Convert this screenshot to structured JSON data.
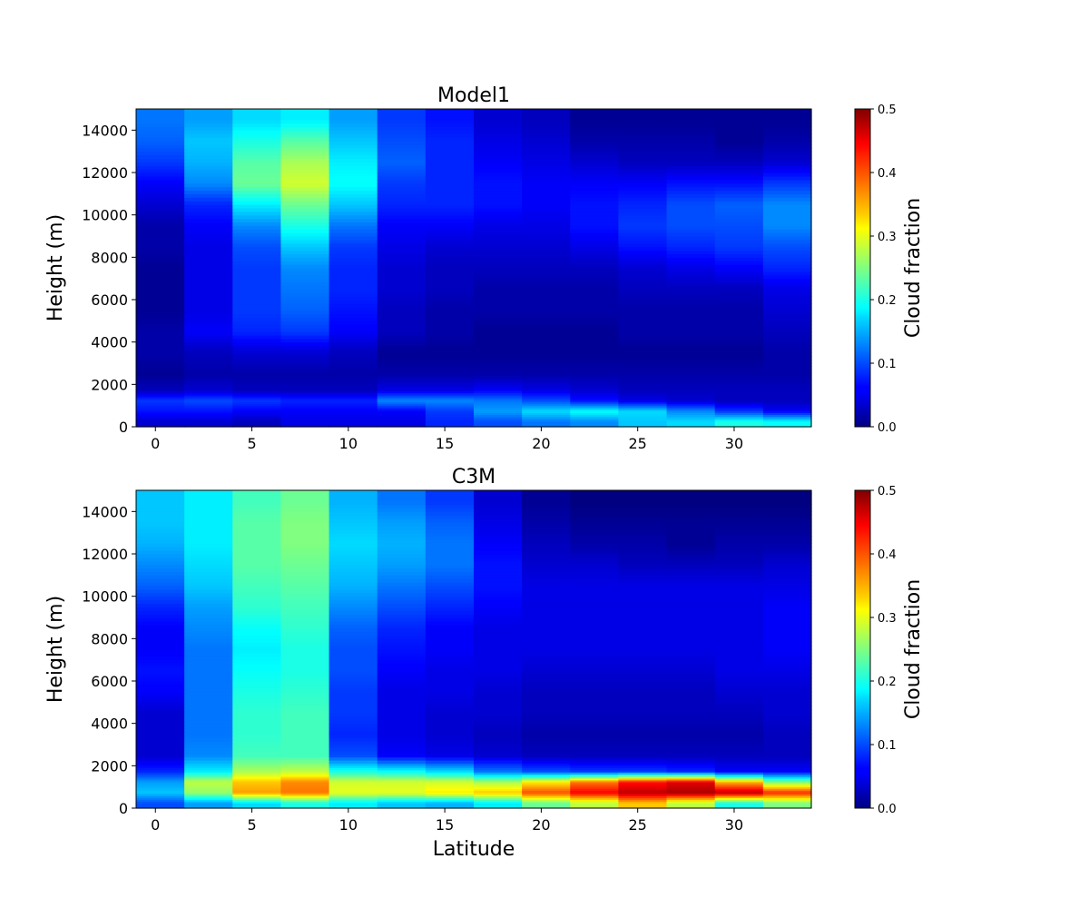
{
  "figure": {
    "description_type": "heatmap",
    "shared_xlabel": "Latitude"
  },
  "chart_data": [
    {
      "type": "heatmap",
      "title": "Model1",
      "xlabel": "",
      "ylabel": "Height (m)",
      "colorbar_label": "Cloud fraction",
      "colormap": "jet",
      "vlim": [
        0,
        0.5
      ],
      "xlim": [
        -1,
        34
      ],
      "ylim": [
        0,
        15000
      ],
      "x_ticks": [
        0,
        5,
        10,
        15,
        20,
        25,
        30
      ],
      "y_ticks": [
        0,
        2000,
        4000,
        6000,
        8000,
        10000,
        12000,
        14000
      ],
      "colorbar_ticks": [
        "0.0",
        "0.1",
        "0.2",
        "0.3",
        "0.4",
        "0.5"
      ],
      "column_centers_lat": [
        0.25,
        2.75,
        5.25,
        7.75,
        10.25,
        12.75,
        15.25,
        17.75,
        20.25,
        22.75,
        25.25,
        27.75,
        30.25,
        32.75
      ],
      "height_levels_m": [
        250,
        750,
        1250,
        1750,
        2500,
        3500,
        4500,
        5500,
        6500,
        7500,
        8500,
        9500,
        10500,
        11500,
        12500,
        13500,
        14500
      ],
      "values": [
        [
          0.04,
          0.04,
          0.03,
          0.05,
          0.05,
          0.05,
          0.08,
          0.1,
          0.12,
          0.13,
          0.16,
          0.17,
          0.2,
          0.19
        ],
        [
          0.07,
          0.07,
          0.06,
          0.06,
          0.06,
          0.06,
          0.09,
          0.14,
          0.17,
          0.19,
          0.17,
          0.13,
          0.09,
          0.06
        ],
        [
          0.09,
          0.1,
          0.09,
          0.08,
          0.08,
          0.13,
          0.13,
          0.12,
          0.1,
          0.07,
          0.05,
          0.04,
          0.03,
          0.03
        ],
        [
          0.03,
          0.04,
          0.03,
          0.03,
          0.03,
          0.05,
          0.05,
          0.06,
          0.05,
          0.04,
          0.03,
          0.03,
          0.03,
          0.03
        ],
        [
          0.01,
          0.02,
          0.02,
          0.02,
          0.02,
          0.02,
          0.02,
          0.02,
          0.02,
          0.02,
          0.02,
          0.02,
          0.02,
          0.02
        ],
        [
          0.02,
          0.03,
          0.04,
          0.04,
          0.03,
          0.01,
          0.01,
          0.01,
          0.01,
          0.01,
          0.01,
          0.01,
          0.01,
          0.02
        ],
        [
          0.02,
          0.06,
          0.08,
          0.09,
          0.06,
          0.03,
          0.02,
          0.01,
          0.01,
          0.01,
          0.02,
          0.02,
          0.02,
          0.03
        ],
        [
          0.01,
          0.05,
          0.09,
          0.11,
          0.07,
          0.03,
          0.02,
          0.02,
          0.02,
          0.02,
          0.02,
          0.02,
          0.02,
          0.04
        ],
        [
          0.01,
          0.05,
          0.09,
          0.12,
          0.08,
          0.04,
          0.03,
          0.02,
          0.02,
          0.02,
          0.03,
          0.03,
          0.03,
          0.05
        ],
        [
          0.01,
          0.05,
          0.09,
          0.13,
          0.08,
          0.04,
          0.03,
          0.03,
          0.03,
          0.03,
          0.04,
          0.05,
          0.06,
          0.08
        ],
        [
          0.02,
          0.05,
          0.1,
          0.16,
          0.09,
          0.05,
          0.04,
          0.04,
          0.04,
          0.05,
          0.07,
          0.08,
          0.09,
          0.1
        ],
        [
          0.02,
          0.06,
          0.13,
          0.2,
          0.12,
          0.06,
          0.06,
          0.05,
          0.05,
          0.07,
          0.09,
          0.1,
          0.1,
          0.13
        ],
        [
          0.04,
          0.08,
          0.18,
          0.24,
          0.16,
          0.08,
          0.08,
          0.07,
          0.06,
          0.07,
          0.08,
          0.1,
          0.11,
          0.13
        ],
        [
          0.06,
          0.13,
          0.24,
          0.29,
          0.19,
          0.09,
          0.08,
          0.07,
          0.06,
          0.06,
          0.06,
          0.07,
          0.07,
          0.09
        ],
        [
          0.09,
          0.15,
          0.23,
          0.27,
          0.18,
          0.11,
          0.08,
          0.06,
          0.05,
          0.04,
          0.03,
          0.03,
          0.03,
          0.04
        ],
        [
          0.11,
          0.16,
          0.2,
          0.23,
          0.16,
          0.1,
          0.08,
          0.05,
          0.04,
          0.02,
          0.02,
          0.02,
          0.01,
          0.02
        ],
        [
          0.12,
          0.14,
          0.17,
          0.18,
          0.14,
          0.09,
          0.07,
          0.04,
          0.03,
          0.01,
          0.01,
          0.01,
          0.01,
          0.01
        ]
      ]
    },
    {
      "type": "heatmap",
      "title": "C3M",
      "xlabel": "Latitude",
      "ylabel": "Height (m)",
      "colorbar_label": "Cloud fraction",
      "colormap": "jet",
      "vlim": [
        0,
        0.5
      ],
      "xlim": [
        -1,
        34
      ],
      "ylim": [
        0,
        15000
      ],
      "x_ticks": [
        0,
        5,
        10,
        15,
        20,
        25,
        30
      ],
      "y_ticks": [
        0,
        2000,
        4000,
        6000,
        8000,
        10000,
        12000,
        14000
      ],
      "colorbar_ticks": [
        "0.0",
        "0.1",
        "0.2",
        "0.3",
        "0.4",
        "0.5"
      ],
      "column_centers_lat": [
        0.25,
        2.75,
        5.25,
        7.75,
        10.25,
        12.75,
        15.25,
        17.75,
        20.25,
        22.75,
        25.25,
        27.75,
        30.25,
        32.75
      ],
      "height_levels_m": [
        250,
        750,
        1250,
        1750,
        2500,
        3500,
        4500,
        5500,
        6500,
        7500,
        8500,
        9500,
        10500,
        11500,
        12500,
        13500,
        14500
      ],
      "values": [
        [
          0.1,
          0.14,
          0.17,
          0.2,
          0.18,
          0.16,
          0.15,
          0.18,
          0.24,
          0.28,
          0.34,
          0.28,
          0.2,
          0.25
        ],
        [
          0.16,
          0.26,
          0.36,
          0.38,
          0.3,
          0.3,
          0.32,
          0.34,
          0.4,
          0.44,
          0.47,
          0.48,
          0.47,
          0.42
        ],
        [
          0.14,
          0.28,
          0.34,
          0.37,
          0.29,
          0.29,
          0.29,
          0.27,
          0.32,
          0.38,
          0.43,
          0.45,
          0.35,
          0.25
        ],
        [
          0.08,
          0.18,
          0.27,
          0.28,
          0.2,
          0.19,
          0.17,
          0.12,
          0.1,
          0.09,
          0.09,
          0.08,
          0.06,
          0.06
        ],
        [
          0.04,
          0.13,
          0.22,
          0.22,
          0.1,
          0.06,
          0.05,
          0.04,
          0.03,
          0.03,
          0.03,
          0.03,
          0.03,
          0.03
        ],
        [
          0.04,
          0.12,
          0.21,
          0.22,
          0.08,
          0.05,
          0.04,
          0.03,
          0.02,
          0.02,
          0.02,
          0.02,
          0.02,
          0.03
        ],
        [
          0.04,
          0.12,
          0.21,
          0.22,
          0.09,
          0.05,
          0.04,
          0.04,
          0.03,
          0.03,
          0.03,
          0.03,
          0.03,
          0.04
        ],
        [
          0.06,
          0.12,
          0.2,
          0.21,
          0.09,
          0.05,
          0.05,
          0.04,
          0.03,
          0.03,
          0.03,
          0.03,
          0.04,
          0.04
        ],
        [
          0.07,
          0.12,
          0.19,
          0.2,
          0.1,
          0.06,
          0.05,
          0.05,
          0.04,
          0.04,
          0.04,
          0.04,
          0.05,
          0.05
        ],
        [
          0.06,
          0.12,
          0.18,
          0.2,
          0.1,
          0.07,
          0.06,
          0.05,
          0.05,
          0.05,
          0.05,
          0.05,
          0.05,
          0.06
        ],
        [
          0.06,
          0.13,
          0.19,
          0.21,
          0.11,
          0.08,
          0.06,
          0.05,
          0.05,
          0.05,
          0.05,
          0.05,
          0.05,
          0.06
        ],
        [
          0.08,
          0.14,
          0.21,
          0.22,
          0.13,
          0.1,
          0.08,
          0.06,
          0.05,
          0.05,
          0.05,
          0.05,
          0.05,
          0.06
        ],
        [
          0.11,
          0.16,
          0.22,
          0.23,
          0.15,
          0.12,
          0.1,
          0.07,
          0.05,
          0.05,
          0.05,
          0.05,
          0.05,
          0.05
        ],
        [
          0.13,
          0.17,
          0.23,
          0.24,
          0.16,
          0.14,
          0.12,
          0.07,
          0.04,
          0.04,
          0.03,
          0.03,
          0.03,
          0.04
        ],
        [
          0.15,
          0.18,
          0.23,
          0.25,
          0.17,
          0.15,
          0.12,
          0.06,
          0.03,
          0.02,
          0.02,
          0.01,
          0.02,
          0.02
        ],
        [
          0.16,
          0.18,
          0.23,
          0.25,
          0.16,
          0.14,
          0.11,
          0.05,
          0.02,
          0.01,
          0.01,
          0.01,
          0.01,
          0.01
        ],
        [
          0.16,
          0.18,
          0.22,
          0.24,
          0.15,
          0.12,
          0.09,
          0.04,
          0.01,
          0.0,
          0.0,
          0.0,
          0.0,
          0.0
        ]
      ]
    }
  ]
}
